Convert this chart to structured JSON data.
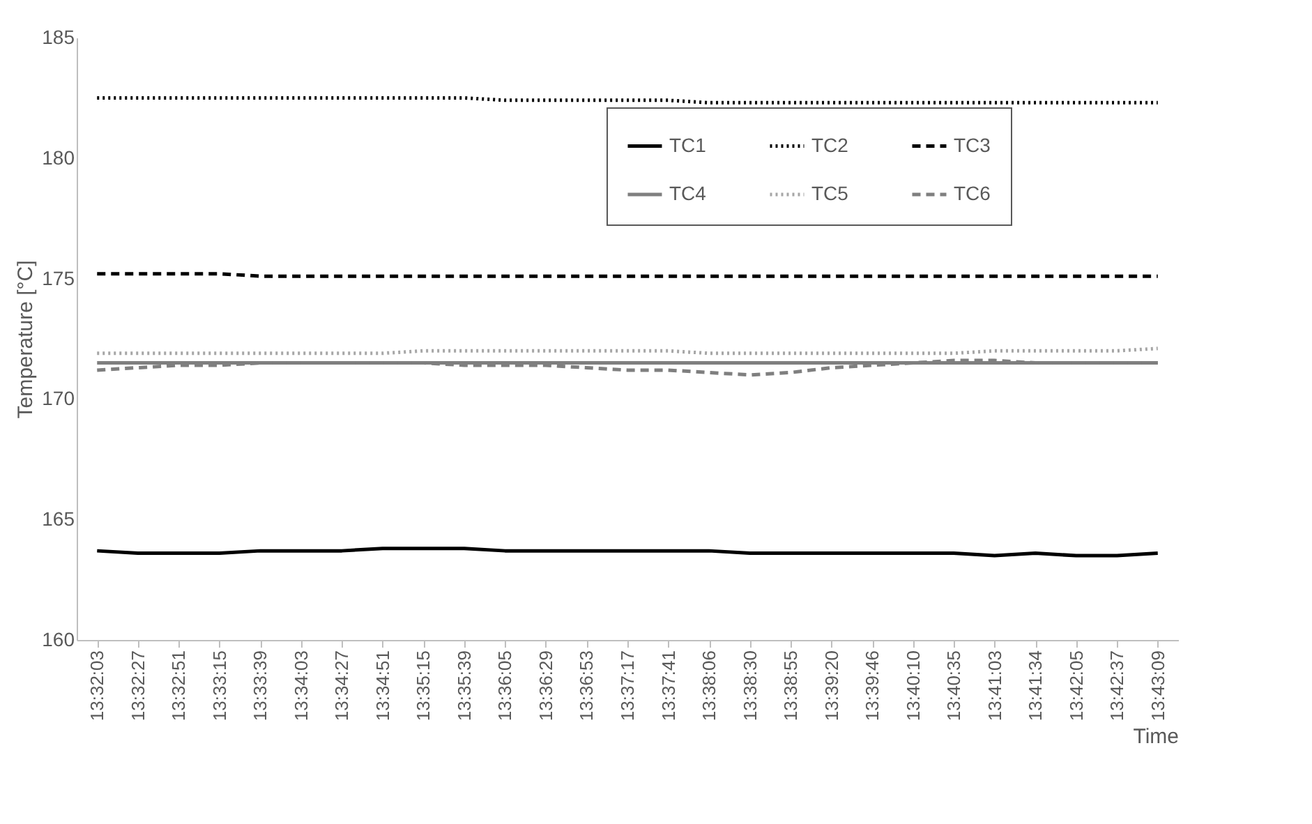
{
  "chart_data": {
    "type": "line",
    "xlabel": "Time",
    "ylabel": "Temperature [°C]",
    "categories": [
      "13:32:03",
      "13:32:27",
      "13:32:51",
      "13:33:15",
      "13:33:39",
      "13:34:03",
      "13:34:27",
      "13:34:51",
      "13:35:15",
      "13:35:39",
      "13:36:05",
      "13:36:29",
      "13:36:53",
      "13:37:17",
      "13:37:41",
      "13:38:06",
      "13:38:30",
      "13:38:55",
      "13:39:20",
      "13:39:46",
      "13:40:10",
      "13:40:35",
      "13:41:03",
      "13:41:34",
      "13:42:05",
      "13:42:37",
      "13:43:09"
    ],
    "series": [
      {
        "name": "TC1",
        "color": "#000000",
        "line_style": "solid",
        "values": [
          163.7,
          163.6,
          163.6,
          163.6,
          163.7,
          163.7,
          163.7,
          163.8,
          163.8,
          163.8,
          163.7,
          163.7,
          163.7,
          163.7,
          163.7,
          163.7,
          163.6,
          163.6,
          163.6,
          163.6,
          163.6,
          163.6,
          163.5,
          163.6,
          163.5,
          163.5,
          163.6
        ]
      },
      {
        "name": "TC2",
        "color": "#000000",
        "line_style": "dotted",
        "values": [
          182.5,
          182.5,
          182.5,
          182.5,
          182.5,
          182.5,
          182.5,
          182.5,
          182.5,
          182.5,
          182.4,
          182.4,
          182.4,
          182.4,
          182.4,
          182.3,
          182.3,
          182.3,
          182.3,
          182.3,
          182.3,
          182.3,
          182.3,
          182.3,
          182.3,
          182.3,
          182.3
        ]
      },
      {
        "name": "TC3",
        "color": "#000000",
        "line_style": "dashed",
        "values": [
          175.2,
          175.2,
          175.2,
          175.2,
          175.1,
          175.1,
          175.1,
          175.1,
          175.1,
          175.1,
          175.1,
          175.1,
          175.1,
          175.1,
          175.1,
          175.1,
          175.1,
          175.1,
          175.1,
          175.1,
          175.1,
          175.1,
          175.1,
          175.1,
          175.1,
          175.1,
          175.1
        ]
      },
      {
        "name": "TC4",
        "color": "#7f7f7f",
        "line_style": "solid",
        "values": [
          171.5,
          171.5,
          171.5,
          171.5,
          171.5,
          171.5,
          171.5,
          171.5,
          171.5,
          171.5,
          171.5,
          171.5,
          171.5,
          171.5,
          171.5,
          171.5,
          171.5,
          171.5,
          171.5,
          171.5,
          171.5,
          171.5,
          171.5,
          171.5,
          171.5,
          171.5,
          171.5
        ]
      },
      {
        "name": "TC5",
        "color": "#a6a6a6",
        "line_style": "dotted",
        "values": [
          171.9,
          171.9,
          171.9,
          171.9,
          171.9,
          171.9,
          171.9,
          171.9,
          172.0,
          172.0,
          172.0,
          172.0,
          172.0,
          172.0,
          172.0,
          171.9,
          171.9,
          171.9,
          171.9,
          171.9,
          171.9,
          171.9,
          172.0,
          172.0,
          172.0,
          172.0,
          172.1
        ]
      },
      {
        "name": "TC6",
        "color": "#7f7f7f",
        "line_style": "dashed",
        "values": [
          171.2,
          171.3,
          171.4,
          171.4,
          171.5,
          171.5,
          171.5,
          171.5,
          171.5,
          171.4,
          171.4,
          171.4,
          171.3,
          171.2,
          171.2,
          171.1,
          171.0,
          171.1,
          171.3,
          171.4,
          171.5,
          171.6,
          171.6,
          171.5,
          171.5,
          171.5,
          171.5
        ]
      }
    ],
    "ylim": [
      160,
      185
    ],
    "yticks": [
      160,
      165,
      170,
      175,
      180,
      185
    ],
    "grid": false,
    "legend": "top right",
    "marker": "none"
  }
}
